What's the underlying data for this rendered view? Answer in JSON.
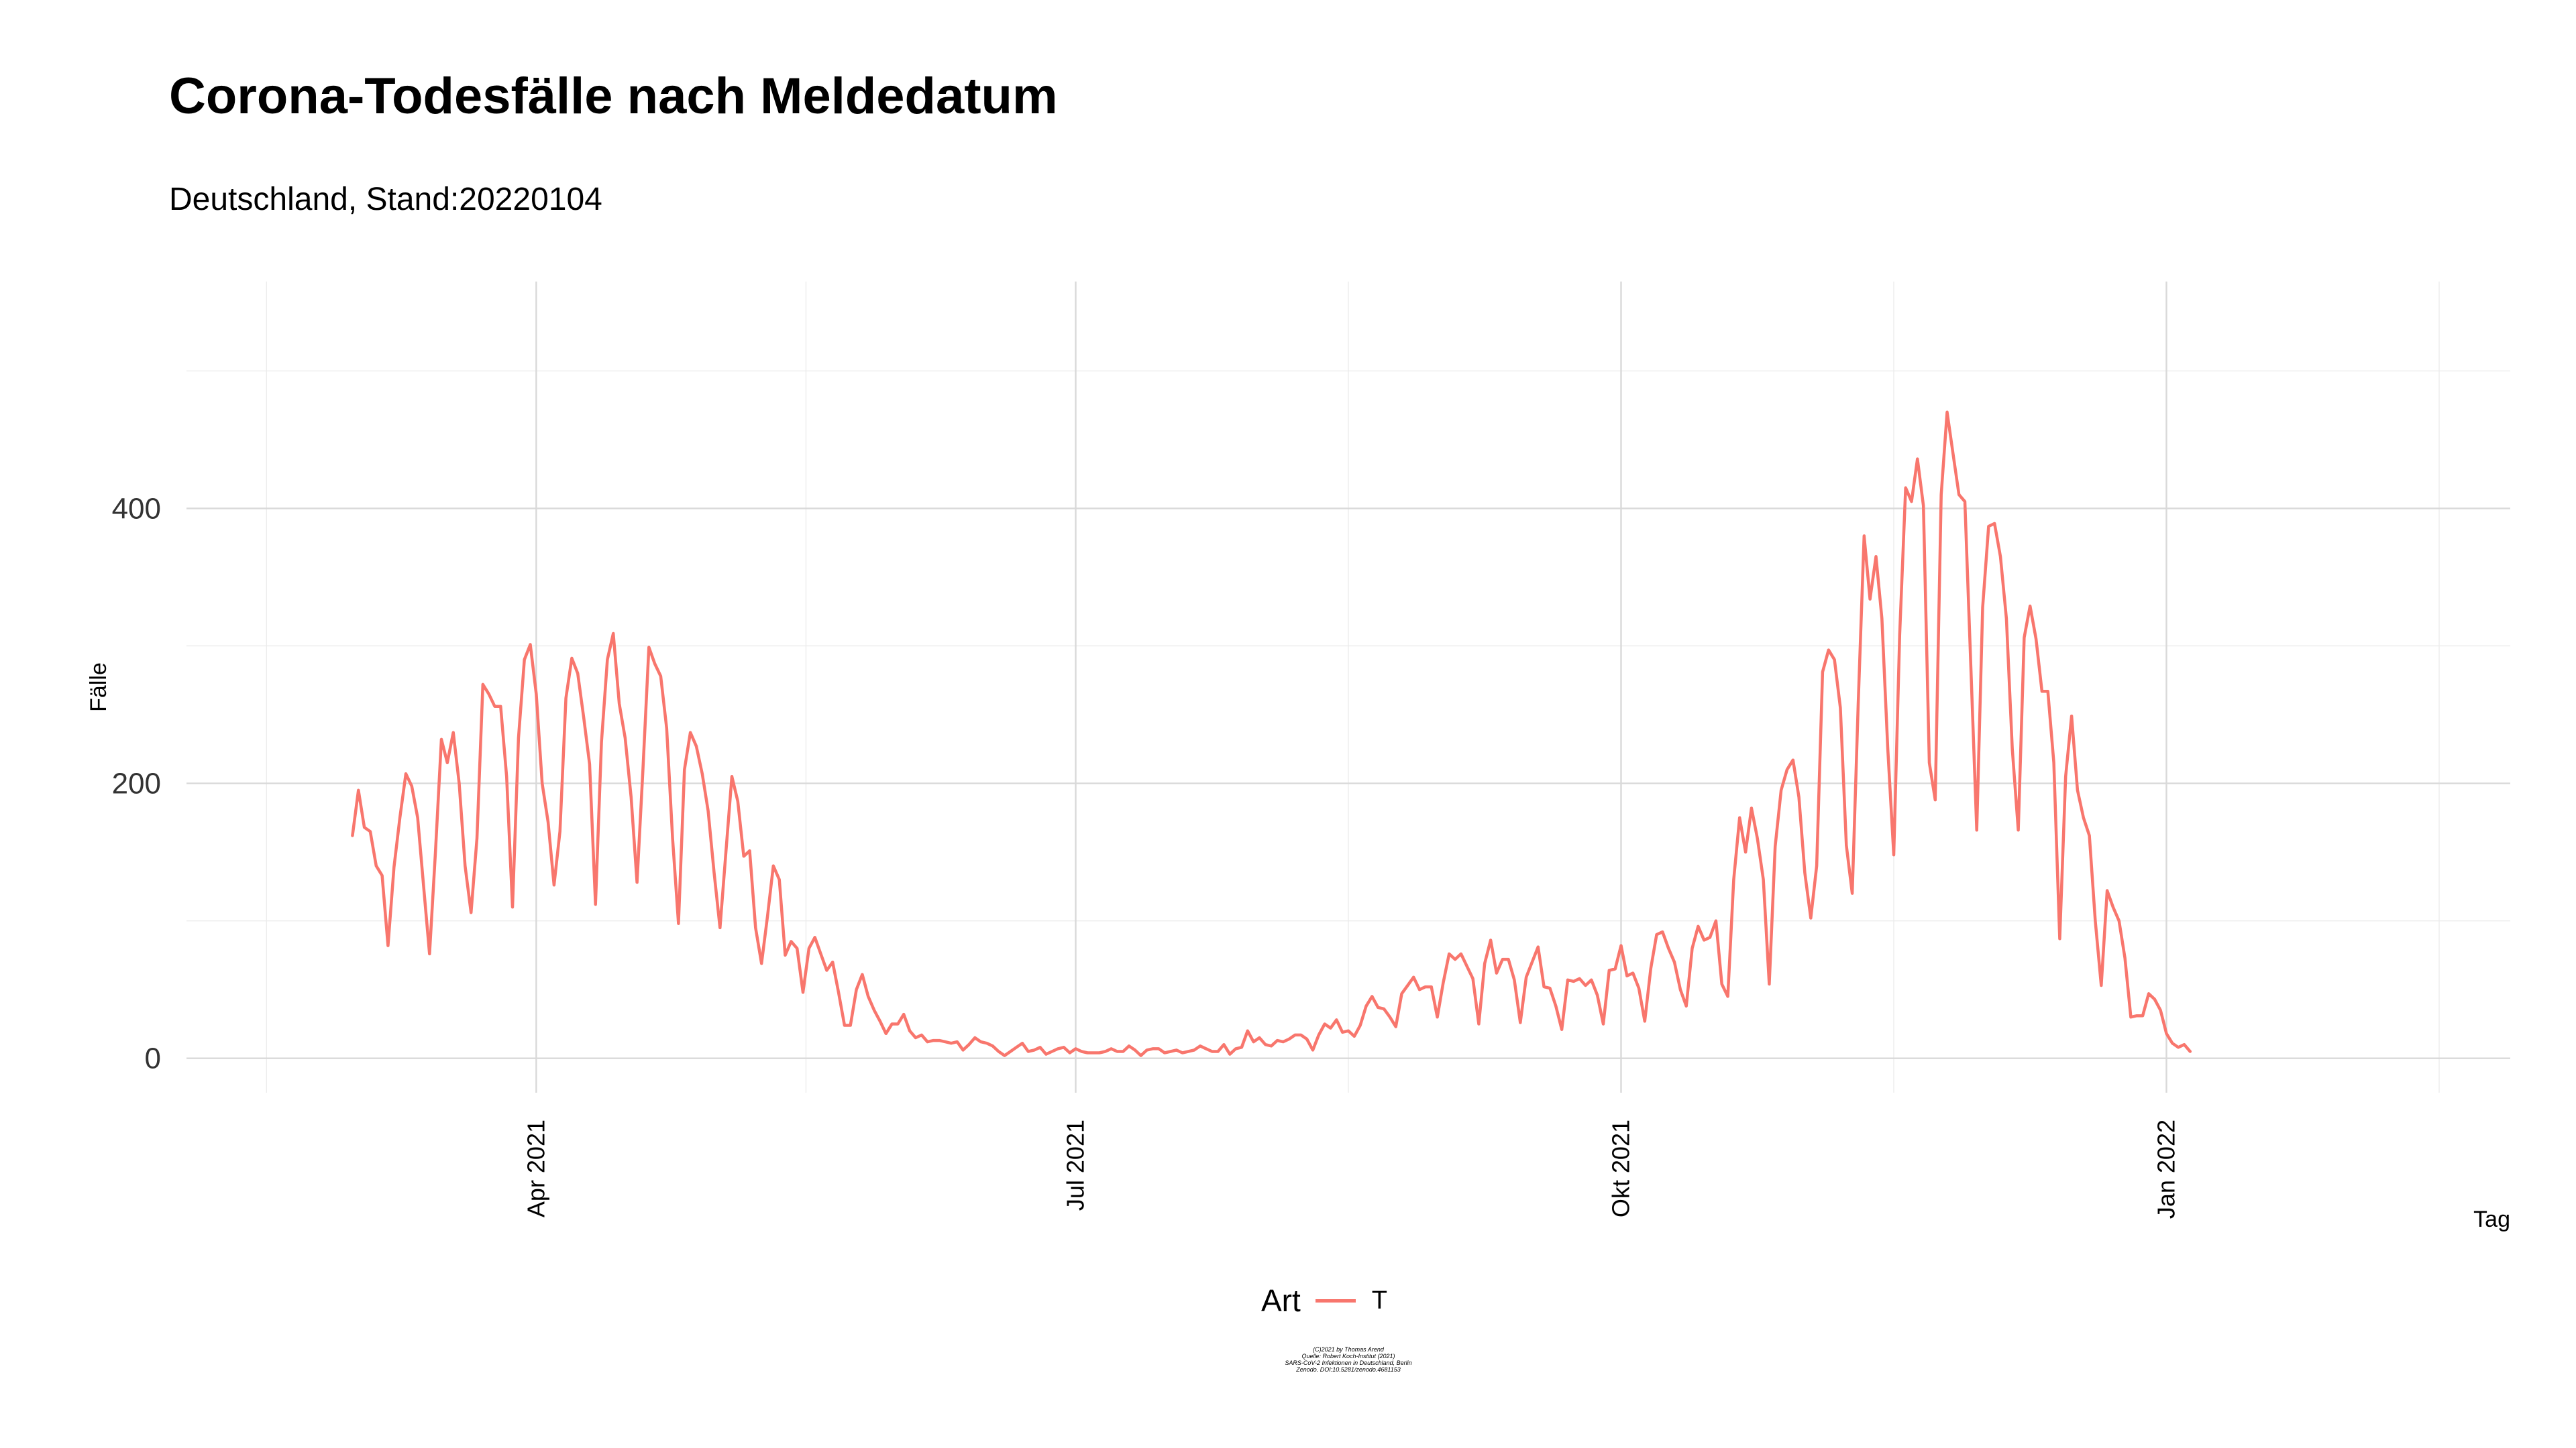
{
  "chart_data": {
    "type": "line",
    "title": "Corona-Todesfälle nach Meldedatum",
    "subtitle": "Deutschland, Stand:20220104",
    "xlabel": "Tag",
    "ylabel": "Fälle",
    "xlim": [
      "2021-02-01",
      "2022-02-28"
    ],
    "ylim": [
      -25,
      565
    ],
    "y_ticks": [
      0,
      200,
      400
    ],
    "x_ticks": [
      {
        "date": "2021-04-01",
        "label": "Apr 2021"
      },
      {
        "date": "2021-07-01",
        "label": "Jul 2021"
      },
      {
        "date": "2021-10-01",
        "label": "Okt 2021"
      },
      {
        "date": "2022-01-01",
        "label": "Jan 2022"
      }
    ],
    "grid": true,
    "legend": {
      "title": "Art",
      "position": "bottom"
    },
    "series": [
      {
        "name": "T",
        "color": "#F8766D",
        "start_date": "2021-03-01",
        "values": [
          162,
          195,
          168,
          165,
          140,
          133,
          82,
          139,
          175,
          207,
          198,
          175,
          125,
          76,
          150,
          232,
          215,
          237,
          200,
          140,
          106,
          160,
          272,
          265,
          256,
          256,
          205,
          110,
          233,
          290,
          301,
          265,
          200,
          172,
          126,
          165,
          262,
          291,
          280,
          248,
          214,
          112,
          230,
          290,
          309,
          258,
          233,
          190,
          128,
          210,
          299,
          287,
          278,
          240,
          160,
          98,
          210,
          237,
          227,
          207,
          180,
          135,
          95,
          150,
          205,
          187,
          147,
          151,
          95,
          69,
          103,
          140,
          130,
          75,
          85,
          80,
          48,
          80,
          88,
          76,
          64,
          70,
          48,
          24,
          24,
          50,
          61,
          45,
          35,
          27,
          18,
          25,
          25,
          32,
          20,
          15,
          17,
          12,
          13,
          13,
          12,
          11,
          12,
          6,
          10,
          15,
          12,
          11,
          9,
          5,
          2,
          5,
          8,
          11,
          5,
          6,
          8,
          3,
          5,
          7,
          8,
          4,
          7,
          5,
          4,
          4,
          4,
          5,
          7,
          5,
          5,
          9,
          6,
          2,
          6,
          7,
          7,
          4,
          5,
          6,
          4,
          5,
          6,
          9,
          7,
          5,
          5,
          10,
          3,
          7,
          8,
          20,
          12,
          15,
          10,
          9,
          13,
          12,
          14,
          17,
          17,
          14,
          6,
          17,
          25,
          22,
          28,
          19,
          20,
          16,
          24,
          38,
          45,
          37,
          36,
          30,
          23,
          47,
          53,
          59,
          50,
          52,
          52,
          30,
          55,
          76,
          72,
          76,
          67,
          58,
          25,
          69,
          86,
          62,
          72,
          72,
          57,
          26,
          59,
          70,
          81,
          52,
          51,
          38,
          21,
          57,
          56,
          58,
          53,
          57,
          46,
          25,
          64,
          65,
          82,
          60,
          62,
          51,
          27,
          65,
          90,
          92,
          80,
          70,
          50,
          38,
          80,
          96,
          86,
          88,
          100,
          54,
          45,
          130,
          175,
          150,
          182,
          160,
          130,
          54,
          154,
          195,
          210,
          217,
          190,
          135,
          102,
          140,
          281,
          297,
          290,
          255,
          155,
          120,
          258,
          380,
          334,
          365,
          320,
          225,
          148,
          308,
          415,
          405,
          436,
          402,
          215,
          188,
          410,
          470,
          440,
          410,
          405,
          285,
          166,
          328,
          387,
          389,
          365,
          320,
          225,
          166,
          306,
          329,
          305,
          267,
          267,
          215,
          87,
          205,
          249,
          195,
          175,
          162,
          100,
          53,
          122,
          110,
          100,
          73,
          30,
          31,
          31,
          47,
          43,
          35,
          18,
          11,
          8,
          10,
          5
        ]
      }
    ],
    "caption": [
      "(C)2021 by Thomas Arend",
      "Quelle: Robert Koch-Institut (2021)",
      "SARS-CoV-2 Infektionen in Deutschland, Berlin",
      "Zenodo. DOI:10.5281/zenodo.4681153"
    ]
  }
}
